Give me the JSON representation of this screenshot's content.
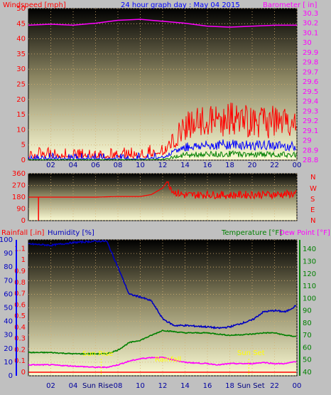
{
  "title": "24 hour graph day : May 04 2015",
  "colors": {
    "bg": "#c0c0c0",
    "windspeed": "#ff0000",
    "windgust": "#0000ff",
    "windavg": "#008000",
    "barometer": "#ff00ff",
    "direction": "#ff0000",
    "rainfall": "#ff0000",
    "humidity": "#0000c0",
    "temperature": "#008000",
    "dewpoint": "#ff00ff",
    "sun": "#ffff00"
  },
  "panels": {
    "wind": {
      "left_label": "Windspeed [mph]",
      "right_label": "Barometer [ in]",
      "y_left_ticks": [
        "0",
        "5",
        "10",
        "15",
        "20",
        "25",
        "30",
        "35",
        "40",
        "45",
        "50"
      ],
      "y_right_ticks": [
        "28.8",
        "28.9",
        "29",
        "29.1",
        "29.2",
        "29.3",
        "29.4",
        "29.5",
        "29.6",
        "29.7",
        "29.8",
        "29.9",
        "30",
        "30.1",
        "30.2",
        "30.3"
      ]
    },
    "direction": {
      "y_ticks": [
        "0",
        "90",
        "180",
        "270",
        "360"
      ],
      "compass": [
        "N",
        "W",
        "S",
        "E",
        "N"
      ]
    },
    "weather": {
      "rain_label": "Rainfall [.in]",
      "humidity_label": "Humidity [%]",
      "temp_label": "Temperature [°F]",
      "dew_label": "Dew Point [°F]",
      "humidity_ticks": [
        "0",
        "10",
        "20",
        "30",
        "40",
        "50",
        "60",
        "70",
        "80",
        "90",
        "100"
      ],
      "rain_ticks": [
        "0",
        "0.1",
        "0.2",
        "0.3",
        "0.4",
        "0.5",
        "0.6",
        "0.7",
        "0.8",
        "0.9",
        "1",
        "1.1"
      ],
      "temp_ticks": [
        "40",
        "50",
        "60",
        "70",
        "80",
        "90",
        "100",
        "110",
        "120",
        "130",
        "140"
      ],
      "annotations": {
        "sunrise": "Sun Rise",
        "sunset": "Sun Set",
        "rainfall": "Rainfall",
        "sunrise_axis": "Sun Rise",
        "sunset_axis": "Sun Set"
      }
    }
  },
  "x_ticks": [
    "02",
    "04",
    "06",
    "08",
    "10",
    "12",
    "14",
    "16",
    "18",
    "20",
    "22",
    "00"
  ],
  "chart_data": [
    {
      "type": "line",
      "title": "24 hour graph day : May 04 2015",
      "ylabel": "Windspeed [mph]",
      "y2label": "Barometer [ in]",
      "ylim": [
        0,
        50
      ],
      "y2lim": [
        28.8,
        30.35
      ],
      "x_hours": [
        0,
        2,
        4,
        6,
        8,
        10,
        12,
        14,
        16,
        18,
        20,
        22,
        24
      ],
      "series": [
        {
          "name": "Windspeed [mph]",
          "axis": "left",
          "values": [
            1,
            1,
            1,
            1,
            1,
            1,
            2,
            11,
            12,
            13,
            12,
            12,
            11
          ]
        },
        {
          "name": "Barometer [ in]",
          "axis": "right",
          "values": [
            30.18,
            30.19,
            30.18,
            30.2,
            30.23,
            30.24,
            30.22,
            30.2,
            30.17,
            30.16,
            30.17,
            30.18,
            30.18
          ]
        }
      ]
    },
    {
      "type": "line",
      "ylim": [
        0,
        360
      ],
      "x_hours": [
        0,
        0.9,
        1,
        2,
        4,
        6,
        8,
        10,
        11,
        12,
        12.4,
        13,
        14,
        16,
        18,
        20,
        22,
        24
      ],
      "series": [
        {
          "name": "Wind Direction",
          "values": [
            180,
            180,
            180,
            180,
            180,
            180,
            185,
            185,
            200,
            250,
            300,
            220,
            195,
            200,
            195,
            200,
            200,
            205
          ]
        }
      ]
    },
    {
      "type": "line",
      "ylim": [
        0,
        100
      ],
      "x_hours": [
        0,
        2,
        4,
        6,
        7,
        8,
        9,
        10,
        11,
        12,
        13,
        14,
        16,
        17,
        18,
        20,
        21,
        22,
        23,
        24
      ],
      "series": [
        {
          "name": "Humidity [%]",
          "axis": "humidity",
          "values": [
            97,
            96,
            98,
            99,
            99,
            80,
            60,
            58,
            55,
            42,
            37,
            37,
            36,
            35,
            36,
            41,
            47,
            48,
            47,
            52
          ]
        },
        {
          "name": "Temperature [°F]",
          "axis": "temp",
          "values": [
            56,
            56,
            55,
            55,
            55,
            58,
            64,
            66,
            70,
            74,
            73,
            72,
            72,
            71,
            70,
            71,
            72,
            72,
            70,
            69
          ]
        },
        {
          "name": "Dew Point [°F]",
          "axis": "temp",
          "values": [
            46,
            46,
            45,
            44,
            44,
            46,
            49,
            51,
            52,
            52,
            50,
            48,
            47,
            46,
            47,
            47,
            48,
            47,
            47,
            49
          ]
        },
        {
          "name": "Rainfall [.in]",
          "axis": "rain",
          "values": [
            0,
            0,
            0,
            0,
            0,
            0,
            0,
            0,
            0,
            0,
            0,
            0,
            0,
            0,
            0,
            0,
            0,
            0,
            0,
            0
          ]
        }
      ]
    }
  ]
}
